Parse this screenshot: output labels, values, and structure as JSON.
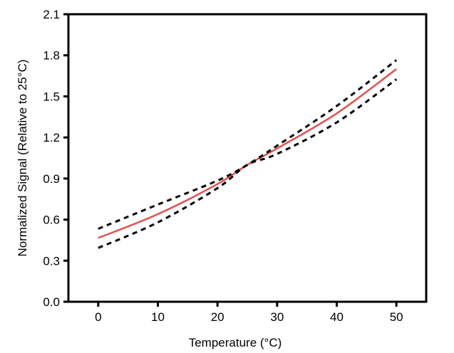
{
  "chart_data": {
    "type": "line",
    "title": "",
    "xlabel": "Temperature (°C)",
    "ylabel": "Normalized Signal (Relative to 25°C)",
    "xlim": [
      -5,
      55
    ],
    "ylim": [
      0,
      2.1
    ],
    "xticks": [
      "0",
      "10",
      "20",
      "30",
      "40",
      "50"
    ],
    "yticks": [
      "0.0",
      "0.3",
      "0.6",
      "0.9",
      "1.2",
      "1.5",
      "1.8",
      "2.1"
    ],
    "grid": false,
    "x": [
      0,
      10,
      20,
      25,
      30,
      40,
      50
    ],
    "series": [
      {
        "style": "solid",
        "color": "#e05050",
        "values": [
          0.466,
          0.64,
          0.86,
          1.0,
          1.12,
          1.376,
          1.7
        ]
      },
      {
        "style": "dashed",
        "color": "#000000",
        "values": [
          0.533,
          0.71,
          0.885,
          1.0,
          1.14,
          1.43,
          1.765
        ]
      },
      {
        "style": "dashed",
        "color": "#000000",
        "values": [
          0.393,
          0.58,
          0.83,
          1.0,
          1.08,
          1.31,
          1.625
        ]
      }
    ]
  }
}
